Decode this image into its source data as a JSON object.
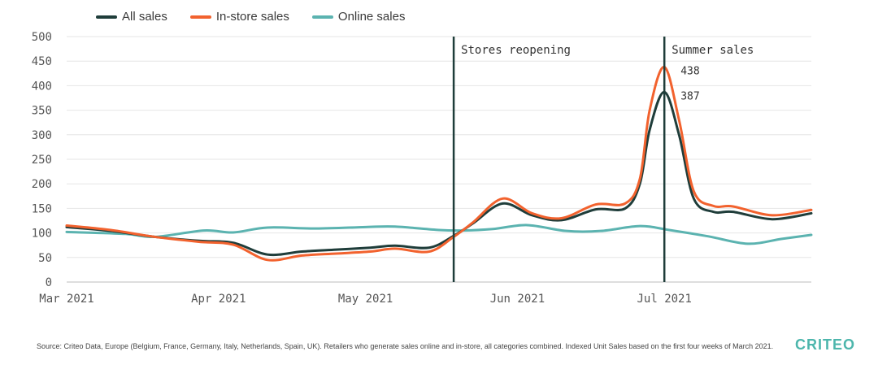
{
  "legend": [
    {
      "label": "All sales",
      "color": "#1f3d3a"
    },
    {
      "label": "In-store sales",
      "color": "#f2622e"
    },
    {
      "label": "Online sales",
      "color": "#5bb3b0"
    }
  ],
  "source": "Source: Criteo Data, Europe (Belgium, France, Germany, Italy, Netherlands, Spain, UK). Retailers who generate sales online and in-store, all categories combined. Indexed Unit Sales based on the first four weeks of March 2021.",
  "logo": "CRITEO",
  "chart_data": {
    "type": "line",
    "title": "",
    "xlabel": "",
    "ylabel": "",
    "ylim": [
      0,
      500
    ],
    "yticks": [
      "0",
      "50",
      "100",
      "150",
      "200",
      "250",
      "300",
      "350",
      "400",
      "450",
      "500"
    ],
    "xlim": [
      "2021-03-01",
      "2021-07-31"
    ],
    "xticks": [
      {
        "date": "2021-03-01",
        "label": "Mar 2021"
      },
      {
        "date": "2021-04-01",
        "label": "Apr 2021"
      },
      {
        "date": "2021-05-01",
        "label": "May 2021"
      },
      {
        "date": "2021-06-01",
        "label": "Jun 2021"
      },
      {
        "date": "2021-07-01",
        "label": "Jul 2021"
      }
    ],
    "grid": "horizontal",
    "legend_position": "top-left",
    "series": [
      {
        "name": "Online sales",
        "color": "#5bb3b0",
        "points": [
          [
            "2021-03-01",
            102
          ],
          [
            "2021-03-13",
            98
          ],
          [
            "2021-03-19",
            92
          ],
          [
            "2021-03-29",
            105
          ],
          [
            "2021-04-04",
            101
          ],
          [
            "2021-04-11",
            111
          ],
          [
            "2021-04-21",
            109
          ],
          [
            "2021-05-01",
            112
          ],
          [
            "2021-05-07",
            113
          ],
          [
            "2021-05-16",
            106
          ],
          [
            "2021-05-21",
            105
          ],
          [
            "2021-05-27",
            108
          ],
          [
            "2021-06-03",
            116
          ],
          [
            "2021-06-11",
            104
          ],
          [
            "2021-06-18",
            104
          ],
          [
            "2021-06-26",
            114
          ],
          [
            "2021-07-02",
            106
          ],
          [
            "2021-07-10",
            93
          ],
          [
            "2021-07-18",
            78
          ],
          [
            "2021-07-25",
            88
          ],
          [
            "2021-07-31",
            96
          ]
        ]
      },
      {
        "name": "All sales",
        "color": "#1f3d3a",
        "points": [
          [
            "2021-03-01",
            112
          ],
          [
            "2021-03-10",
            104
          ],
          [
            "2021-03-19",
            92
          ],
          [
            "2021-03-28",
            84
          ],
          [
            "2021-04-04",
            80
          ],
          [
            "2021-04-11",
            56
          ],
          [
            "2021-04-18",
            62
          ],
          [
            "2021-04-25",
            66
          ],
          [
            "2021-05-02",
            70
          ],
          [
            "2021-05-07",
            74
          ],
          [
            "2021-05-14",
            70
          ],
          [
            "2021-05-19",
            94
          ],
          [
            "2021-05-23",
            120
          ],
          [
            "2021-05-29",
            160
          ],
          [
            "2021-06-04",
            136
          ],
          [
            "2021-06-10",
            126
          ],
          [
            "2021-06-17",
            148
          ],
          [
            "2021-06-23",
            150
          ],
          [
            "2021-06-26",
            200
          ],
          [
            "2021-06-28",
            310
          ],
          [
            "2021-07-01",
            387
          ],
          [
            "2021-07-04",
            300
          ],
          [
            "2021-07-07",
            170
          ],
          [
            "2021-07-11",
            143
          ],
          [
            "2021-07-15",
            143
          ],
          [
            "2021-07-23",
            128
          ],
          [
            "2021-07-31",
            140
          ]
        ]
      },
      {
        "name": "In-store sales",
        "color": "#f2622e",
        "points": [
          [
            "2021-03-01",
            115
          ],
          [
            "2021-03-10",
            106
          ],
          [
            "2021-03-19",
            92
          ],
          [
            "2021-03-28",
            82
          ],
          [
            "2021-04-04",
            76
          ],
          [
            "2021-04-11",
            45
          ],
          [
            "2021-04-18",
            54
          ],
          [
            "2021-04-25",
            58
          ],
          [
            "2021-05-02",
            62
          ],
          [
            "2021-05-07",
            68
          ],
          [
            "2021-05-14",
            62
          ],
          [
            "2021-05-19",
            92
          ],
          [
            "2021-05-23",
            122
          ],
          [
            "2021-05-29",
            170
          ],
          [
            "2021-06-04",
            140
          ],
          [
            "2021-06-10",
            130
          ],
          [
            "2021-06-17",
            158
          ],
          [
            "2021-06-23",
            160
          ],
          [
            "2021-06-26",
            210
          ],
          [
            "2021-06-28",
            350
          ],
          [
            "2021-07-01",
            438
          ],
          [
            "2021-07-04",
            330
          ],
          [
            "2021-07-07",
            185
          ],
          [
            "2021-07-11",
            155
          ],
          [
            "2021-07-15",
            154
          ],
          [
            "2021-07-23",
            136
          ],
          [
            "2021-07-31",
            147
          ]
        ]
      }
    ],
    "vlines": [
      {
        "date": "2021-05-19",
        "label": "Stores reopening"
      },
      {
        "date": "2021-07-01",
        "label": "Summer sales"
      }
    ],
    "annotations": [
      {
        "text": "438",
        "date": "2021-07-01",
        "value": 438
      },
      {
        "text": "387",
        "date": "2021-07-01",
        "value": 387
      }
    ]
  }
}
